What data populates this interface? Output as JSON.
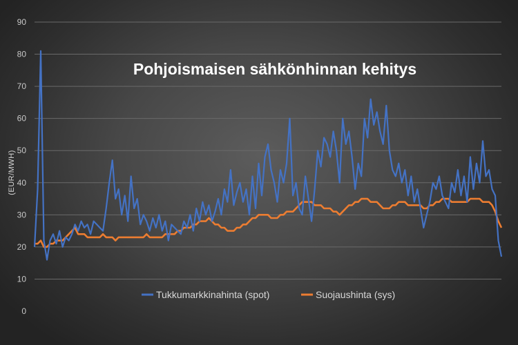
{
  "chart_data": {
    "type": "line",
    "title": "Pohjoismaisen sähkönhinnan kehitys",
    "xlabel": "",
    "ylabel": "(EUR/MWH)",
    "ylim": [
      0,
      90
    ],
    "yticks": [
      0,
      10,
      20,
      30,
      40,
      50,
      60,
      70,
      80,
      90
    ],
    "grid": true,
    "legend_position": "bottom-center",
    "x": [
      0,
      2,
      4,
      6,
      8,
      10,
      12,
      14,
      16,
      18,
      20,
      22,
      24,
      26,
      28,
      30,
      32,
      34,
      36,
      38,
      40,
      42,
      44,
      46,
      48,
      50,
      52,
      54,
      56,
      58,
      60,
      62,
      64,
      66,
      68,
      70,
      72,
      74,
      76,
      78,
      80,
      82,
      84,
      86,
      88,
      90,
      92,
      94,
      96,
      98,
      100,
      102,
      104,
      106,
      108,
      110,
      112,
      114,
      116,
      118,
      120,
      122,
      124,
      126,
      128,
      130,
      132,
      134,
      136,
      138,
      140,
      142,
      144,
      146,
      148,
      150,
      152,
      154,
      156,
      158,
      160,
      162,
      164,
      166,
      168,
      170,
      172,
      174,
      176,
      178,
      180,
      182,
      184,
      186,
      188,
      190,
      192,
      194,
      196,
      198,
      200,
      202,
      204,
      206,
      208,
      210,
      212,
      214,
      216,
      218,
      220,
      222,
      224,
      226,
      228,
      230,
      232,
      234,
      236,
      238,
      240,
      242,
      244,
      246,
      248,
      250,
      252,
      254,
      256,
      258,
      260,
      262,
      264,
      266,
      268,
      270,
      272,
      274,
      276,
      278,
      280,
      282,
      284,
      286,
      288,
      290,
      292,
      294,
      296,
      298,
      300
    ],
    "series": [
      {
        "name": "Tukkumarkkinahinta (spot)",
        "color": "#4472c4",
        "values": [
          20,
          38,
          81,
          22,
          16,
          22,
          24,
          21,
          25,
          20,
          23,
          22,
          24,
          27,
          25,
          28,
          26,
          27,
          24,
          28,
          27,
          26,
          25,
          32,
          40,
          47,
          35,
          38,
          30,
          36,
          28,
          42,
          32,
          35,
          27,
          30,
          28,
          25,
          29,
          26,
          30,
          25,
          28,
          22,
          27,
          26,
          25,
          24,
          28,
          26,
          30,
          25,
          32,
          28,
          34,
          30,
          33,
          28,
          31,
          35,
          30,
          38,
          34,
          44,
          33,
          37,
          40,
          34,
          38,
          30,
          42,
          32,
          46,
          36,
          48,
          52,
          44,
          40,
          34,
          44,
          40,
          46,
          60,
          36,
          40,
          32,
          30,
          42,
          35,
          28,
          38,
          50,
          45,
          54,
          52,
          48,
          56,
          50,
          40,
          60,
          52,
          56,
          48,
          38,
          46,
          42,
          60,
          54,
          66,
          58,
          62,
          56,
          52,
          64,
          50,
          44,
          42,
          46,
          40,
          44,
          36,
          42,
          34,
          38,
          32,
          26,
          30,
          34,
          40,
          38,
          42,
          36,
          34,
          32,
          40,
          37,
          44,
          36,
          42,
          34,
          48,
          38,
          46,
          40,
          53,
          42,
          44,
          38,
          36,
          22,
          17
        ]
      },
      {
        "name": "Suojaushinta (sys)",
        "color": "#ed7d31",
        "values": [
          21,
          21,
          22,
          20,
          20,
          21,
          21,
          22,
          22,
          22,
          23,
          24,
          25,
          26,
          24,
          24,
          24,
          23,
          23,
          23,
          23,
          23,
          24,
          23,
          23,
          23,
          22,
          23,
          23,
          23,
          23,
          23,
          23,
          23,
          23,
          23,
          24,
          23,
          23,
          23,
          23,
          23,
          24,
          24,
          24,
          24,
          25,
          25,
          26,
          26,
          26,
          27,
          27,
          28,
          28,
          28,
          29,
          28,
          27,
          27,
          26,
          26,
          25,
          25,
          25,
          26,
          26,
          27,
          27,
          28,
          29,
          29,
          30,
          30,
          30,
          30,
          29,
          29,
          29,
          30,
          30,
          31,
          31,
          31,
          32,
          33,
          34,
          34,
          34,
          34,
          33,
          33,
          33,
          32,
          32,
          32,
          31,
          31,
          30,
          31,
          32,
          33,
          33,
          34,
          34,
          35,
          35,
          35,
          34,
          34,
          34,
          33,
          32,
          32,
          32,
          33,
          33,
          34,
          34,
          34,
          33,
          33,
          33,
          33,
          33,
          32,
          32,
          33,
          33,
          34,
          34,
          35,
          35,
          35,
          34,
          34,
          34,
          34,
          34,
          34,
          35,
          35,
          35,
          35,
          34,
          34,
          34,
          33,
          31,
          28,
          26
        ]
      }
    ]
  }
}
